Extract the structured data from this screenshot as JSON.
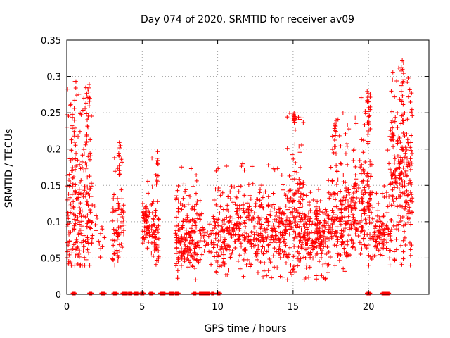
{
  "chart_data": {
    "type": "scatter",
    "title": "Day 074 of 2020, SRMTID for receiver av09",
    "xlabel": "GPS time / hours",
    "ylabel": "SRMTID / TECUs",
    "xlim": [
      0,
      24
    ],
    "ylim": [
      0,
      0.35
    ],
    "x_ticks": [
      0,
      5,
      10,
      15,
      20
    ],
    "x_tick_labels": [
      "0",
      "5",
      "10",
      "15",
      "20"
    ],
    "y_ticks": [
      0,
      0.05,
      0.1,
      0.15,
      0.2,
      0.25,
      0.3,
      0.35
    ],
    "y_tick_labels": [
      "0",
      "0.05",
      "0.1",
      "0.15",
      "0.2",
      "0.25",
      "0.3",
      "0.35"
    ],
    "grid": true,
    "marker": "+",
    "color": "#ff0000",
    "series": [
      {
        "name": "SRMTID",
        "clusters": [
          {
            "x": [
              0.0,
              1.7
            ],
            "y": [
              0.04,
              0.3
            ],
            "n": 220,
            "center": 0.11
          },
          {
            "x": [
              1.8,
              2.5
            ],
            "y": [
              0.03,
              0.14
            ],
            "n": 15,
            "center": 0.09
          },
          {
            "x": [
              3.0,
              3.8
            ],
            "y": [
              0.04,
              0.21
            ],
            "n": 70,
            "center": 0.09
          },
          {
            "x": [
              5.0,
              5.5
            ],
            "y": [
              0.04,
              0.18
            ],
            "n": 55,
            "center": 0.1
          },
          {
            "x": [
              5.6,
              6.1
            ],
            "y": [
              0.04,
              0.2
            ],
            "n": 60,
            "center": 0.08
          },
          {
            "x": [
              7.2,
              8.7
            ],
            "y": [
              0.02,
              0.18
            ],
            "n": 180,
            "center": 0.08
          },
          {
            "x": [
              8.7,
              9.6
            ],
            "y": [
              0.04,
              0.13
            ],
            "n": 40,
            "center": 0.08
          },
          {
            "x": [
              9.6,
              14.6
            ],
            "y": [
              0.02,
              0.18
            ],
            "n": 450,
            "center": 0.09
          },
          {
            "x": [
              14.6,
              15.7
            ],
            "y": [
              0.02,
              0.25
            ],
            "n": 150,
            "center": 0.1
          },
          {
            "x": [
              15.7,
              17.5
            ],
            "y": [
              0.02,
              0.16
            ],
            "n": 200,
            "center": 0.08
          },
          {
            "x": [
              17.5,
              19.5
            ],
            "y": [
              0.03,
              0.25
            ],
            "n": 220,
            "center": 0.11
          },
          {
            "x": [
              19.5,
              20.3
            ],
            "y": [
              0.04,
              0.28
            ],
            "n": 110,
            "center": 0.12
          },
          {
            "x": [
              20.3,
              21.0
            ],
            "y": [
              0.04,
              0.14
            ],
            "n": 60,
            "center": 0.08
          },
          {
            "x": [
              21.0,
              21.4
            ],
            "y": [
              0.05,
              0.21
            ],
            "n": 30,
            "center": 0.1
          },
          {
            "x": [
              21.4,
              22.9
            ],
            "y": [
              0.04,
              0.33
            ],
            "n": 220,
            "center": 0.15
          }
        ],
        "spikes": [
          {
            "x": 0.35,
            "y": [
              0.15,
              0.25
            ]
          },
          {
            "x": 0.55,
            "y": [
              0.18,
              0.3
            ]
          },
          {
            "x": 1.3,
            "y": [
              0.2,
              0.29
            ]
          },
          {
            "x": 1.45,
            "y": [
              0.22,
              0.3
            ]
          },
          {
            "x": 3.5,
            "y": [
              0.15,
              0.21
            ]
          },
          {
            "x": 6.0,
            "y": [
              0.15,
              0.2
            ]
          },
          {
            "x": 15.1,
            "y": [
              0.2,
              0.25
            ]
          },
          {
            "x": 17.8,
            "y": [
              0.19,
              0.25
            ]
          },
          {
            "x": 19.95,
            "y": [
              0.2,
              0.28
            ]
          },
          {
            "x": 20.05,
            "y": [
              0.22,
              0.28
            ]
          },
          {
            "x": 21.6,
            "y": [
              0.2,
              0.24
            ]
          },
          {
            "x": 22.2,
            "y": [
              0.26,
              0.33
            ]
          },
          {
            "x": 22.3,
            "y": [
              0.22,
              0.32
            ]
          }
        ],
        "zero_segments": [
          [
            0.4,
            0.6
          ],
          [
            1.5,
            1.7
          ],
          [
            2.3,
            2.5
          ],
          [
            3.1,
            3.3
          ],
          [
            3.7,
            4.0
          ],
          [
            4.1,
            4.3
          ],
          [
            4.5,
            4.7
          ],
          [
            4.9,
            5.1
          ],
          [
            5.5,
            5.7
          ],
          [
            6.2,
            6.5
          ],
          [
            6.8,
            7.1
          ],
          [
            7.2,
            7.4
          ],
          [
            8.4,
            8.6
          ],
          [
            8.8,
            9.5
          ],
          [
            9.6,
            9.8
          ],
          [
            10.0,
            10.2
          ],
          [
            19.9,
            20.1
          ],
          [
            20.9,
            21.4
          ]
        ]
      }
    ]
  }
}
